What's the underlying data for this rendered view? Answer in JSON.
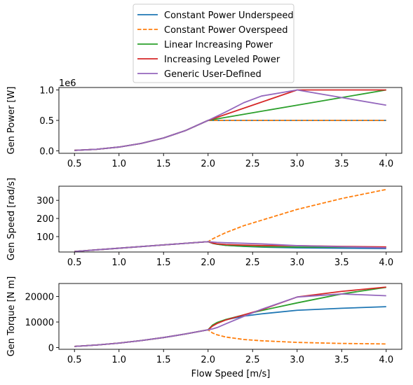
{
  "legend": {
    "entries": [
      {
        "label": "Constant Power Underspeed",
        "color": "#1f77b4",
        "dashed": false
      },
      {
        "label": "Constant Power Overspeed",
        "color": "#ff7f0e",
        "dashed": true
      },
      {
        "label": "Linear Increasing Power",
        "color": "#2ca02c",
        "dashed": false
      },
      {
        "label": "Increasing Leveled Power",
        "color": "#d62728",
        "dashed": false
      },
      {
        "label": "Generic User-Defined",
        "color": "#9467bd",
        "dashed": false
      }
    ]
  },
  "chart_data": [
    {
      "type": "line",
      "ylabel": "Gen Power [W]",
      "xlabel": "",
      "offset_text": "1e6",
      "xlim": [
        0.325,
        4.175
      ],
      "ylim": [
        -0.04,
        1.04
      ],
      "xticks": [
        0.5,
        1.0,
        1.5,
        2.0,
        2.5,
        3.0,
        3.5,
        4.0
      ],
      "xtick_labels": [
        "0.5",
        "1.0",
        "1.5",
        "2.0",
        "2.5",
        "3.0",
        "3.5",
        "4.0"
      ],
      "yticks": [
        0.0,
        0.5,
        1.0
      ],
      "ytick_labels": [
        "0.0",
        "0.5",
        "1.0"
      ],
      "series": [
        {
          "name": "Constant Power Underspeed",
          "x": [
            0.5,
            0.75,
            1.0,
            1.25,
            1.5,
            1.75,
            2.0,
            2.5,
            3.0,
            3.5,
            4.0
          ],
          "y": [
            0.008,
            0.026,
            0.0625,
            0.122,
            0.211,
            0.335,
            0.5,
            0.5,
            0.5,
            0.5,
            0.5
          ]
        },
        {
          "name": "Constant Power Overspeed",
          "x": [
            0.5,
            0.75,
            1.0,
            1.25,
            1.5,
            1.75,
            2.0,
            2.5,
            3.0,
            3.5,
            4.0
          ],
          "y": [
            0.008,
            0.026,
            0.0625,
            0.122,
            0.211,
            0.335,
            0.5,
            0.5,
            0.5,
            0.5,
            0.5
          ]
        },
        {
          "name": "Linear Increasing Power",
          "x": [
            0.5,
            0.75,
            1.0,
            1.25,
            1.5,
            1.75,
            2.0,
            2.5,
            3.0,
            3.5,
            4.0
          ],
          "y": [
            0.008,
            0.026,
            0.0625,
            0.122,
            0.211,
            0.335,
            0.5,
            0.625,
            0.75,
            0.875,
            1.0
          ]
        },
        {
          "name": "Increasing Leveled Power",
          "x": [
            0.5,
            0.75,
            1.0,
            1.25,
            1.5,
            1.75,
            2.0,
            2.5,
            3.0,
            3.5,
            4.0
          ],
          "y": [
            0.008,
            0.026,
            0.0625,
            0.122,
            0.211,
            0.335,
            0.5,
            0.75,
            1.0,
            1.0,
            1.0
          ]
        },
        {
          "name": "Generic User-Defined",
          "x": [
            0.5,
            0.75,
            1.0,
            1.25,
            1.5,
            1.75,
            2.0,
            2.2,
            2.4,
            2.6,
            2.8,
            3.0,
            3.5,
            4.0
          ],
          "y": [
            0.008,
            0.026,
            0.0625,
            0.122,
            0.211,
            0.335,
            0.5,
            0.64,
            0.79,
            0.9,
            0.95,
            1.0,
            0.875,
            0.75
          ]
        }
      ]
    },
    {
      "type": "line",
      "ylabel": "Gen Speed [rad/s]",
      "xlabel": "",
      "xlim": [
        0.325,
        4.175
      ],
      "ylim": [
        15,
        378
      ],
      "xticks": [
        0.5,
        1.0,
        1.5,
        2.0,
        2.5,
        3.0,
        3.5,
        4.0
      ],
      "xtick_labels": [
        "0.5",
        "1.0",
        "1.5",
        "2.0",
        "2.5",
        "3.0",
        "3.5",
        "4.0"
      ],
      "yticks": [
        100,
        200,
        300
      ],
      "ytick_labels": [
        "100",
        "200",
        "300"
      ],
      "series": [
        {
          "name": "Constant Power Underspeed",
          "x": [
            0.5,
            1.0,
            1.5,
            2.0,
            2.05,
            2.1,
            2.2,
            2.4,
            2.6,
            3.0,
            3.5,
            4.0
          ],
          "y": [
            18,
            36,
            54,
            72,
            63,
            58,
            52,
            46,
            42,
            38,
            36,
            34
          ]
        },
        {
          "name": "Constant Power Overspeed",
          "x": [
            0.5,
            1.0,
            1.5,
            2.0,
            2.05,
            2.1,
            2.2,
            2.4,
            2.6,
            3.0,
            3.5,
            4.0
          ],
          "y": [
            18,
            36,
            54,
            72,
            87,
            99,
            122,
            160,
            190,
            250,
            310,
            360
          ]
        },
        {
          "name": "Linear Increasing Power",
          "x": [
            0.5,
            1.0,
            1.5,
            2.0,
            2.05,
            2.1,
            2.2,
            2.4,
            2.6,
            3.0,
            3.5,
            4.0
          ],
          "y": [
            18,
            36,
            54,
            72,
            63,
            58,
            52,
            47,
            44,
            42,
            42,
            42
          ]
        },
        {
          "name": "Increasing Leveled Power",
          "x": [
            0.5,
            1.0,
            1.5,
            2.0,
            2.05,
            2.1,
            2.2,
            2.4,
            2.6,
            3.0,
            3.5,
            4.0
          ],
          "y": [
            18,
            36,
            54,
            72,
            64,
            60,
            56,
            53,
            51,
            50,
            46,
            43
          ]
        },
        {
          "name": "Generic User-Defined",
          "x": [
            0.5,
            1.0,
            1.5,
            2.0,
            2.05,
            2.1,
            2.2,
            2.4,
            2.6,
            3.0,
            3.5,
            4.0
          ],
          "y": [
            18,
            36,
            54,
            72,
            70,
            68,
            66,
            63,
            60,
            50,
            44,
            38
          ]
        }
      ]
    },
    {
      "type": "line",
      "ylabel": "Gen Torque [N m]",
      "xlabel": "Flow Speed [m/s]",
      "xlim": [
        0.325,
        4.175
      ],
      "ylim": [
        -700,
        25100
      ],
      "xticks": [
        0.5,
        1.0,
        1.5,
        2.0,
        2.5,
        3.0,
        3.5,
        4.0
      ],
      "xtick_labels": [
        "0.5",
        "1.0",
        "1.5",
        "2.0",
        "2.5",
        "3.0",
        "3.5",
        "4.0"
      ],
      "yticks": [
        0,
        10000,
        20000
      ],
      "ytick_labels": [
        "0",
        "10000",
        "20000"
      ],
      "series": [
        {
          "name": "Constant Power Underspeed",
          "x": [
            0.5,
            0.75,
            1.0,
            1.25,
            1.5,
            1.75,
            2.0,
            2.05,
            2.1,
            2.2,
            2.4,
            2.6,
            3.0,
            3.5,
            4.0
          ],
          "y": [
            440,
            990,
            1740,
            2720,
            3910,
            5330,
            6950,
            8600,
            9600,
            10900,
            12300,
            13200,
            14600,
            15400,
            16000
          ]
        },
        {
          "name": "Constant Power Overspeed",
          "x": [
            0.5,
            0.75,
            1.0,
            1.25,
            1.5,
            1.75,
            2.0,
            2.05,
            2.1,
            2.2,
            2.4,
            2.6,
            3.0,
            3.5,
            4.0
          ],
          "y": [
            440,
            990,
            1740,
            2720,
            3910,
            5330,
            6950,
            5700,
            5000,
            4100,
            3150,
            2650,
            2000,
            1600,
            1400
          ]
        },
        {
          "name": "Linear Increasing Power",
          "x": [
            0.5,
            0.75,
            1.0,
            1.25,
            1.5,
            1.75,
            2.0,
            2.05,
            2.1,
            2.2,
            2.4,
            2.6,
            3.0,
            3.5,
            4.0
          ],
          "y": [
            440,
            990,
            1740,
            2720,
            3910,
            5330,
            6950,
            8800,
            9800,
            11000,
            12800,
            14500,
            17500,
            21000,
            23600
          ]
        },
        {
          "name": "Increasing Leveled Power",
          "x": [
            0.5,
            0.75,
            1.0,
            1.25,
            1.5,
            1.75,
            2.0,
            2.05,
            2.1,
            2.2,
            2.4,
            2.6,
            3.0,
            3.5,
            4.0
          ],
          "y": [
            440,
            990,
            1740,
            2720,
            3910,
            5330,
            6950,
            8400,
            9400,
            10800,
            12800,
            14800,
            19800,
            22000,
            23700
          ]
        },
        {
          "name": "Generic User-Defined",
          "x": [
            0.5,
            0.75,
            1.0,
            1.25,
            1.5,
            1.75,
            2.0,
            2.05,
            2.1,
            2.2,
            2.4,
            2.6,
            3.0,
            3.5,
            4.0
          ],
          "y": [
            440,
            990,
            1740,
            2720,
            3910,
            5330,
            6950,
            7300,
            7800,
            9300,
            12200,
            15000,
            19800,
            21000,
            20300
          ]
        }
      ]
    }
  ]
}
